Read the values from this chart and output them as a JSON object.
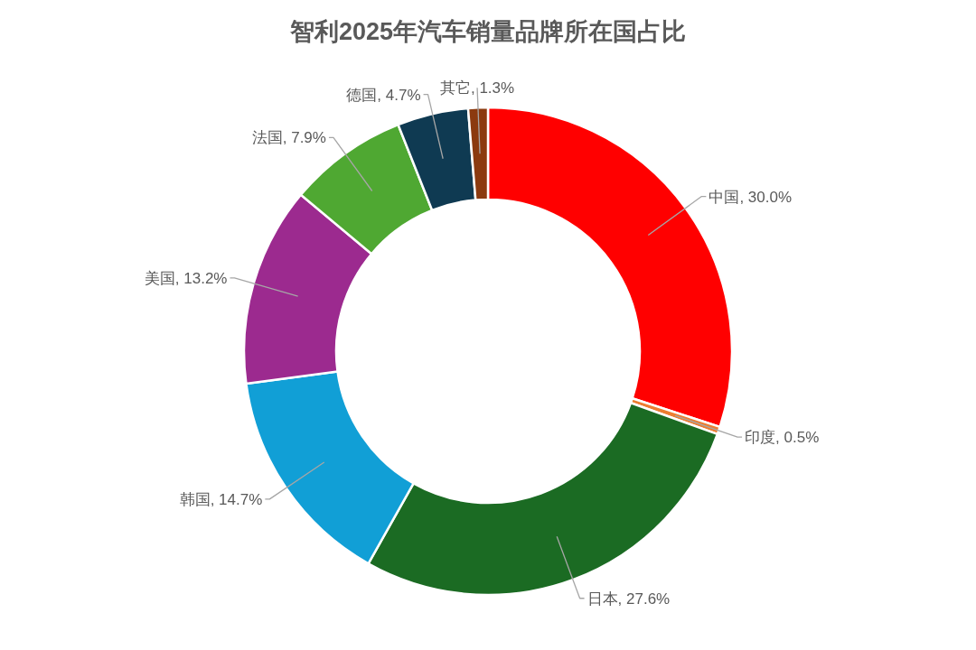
{
  "chart_data": {
    "type": "donut",
    "title": "智利2025年汽车销量品牌所在国占比",
    "categories": [
      "中国",
      "印度",
      "日本",
      "韩国",
      "美国",
      "法国",
      "德国",
      "其它"
    ],
    "values": [
      30.0,
      0.5,
      27.6,
      14.7,
      13.2,
      7.9,
      4.7,
      1.3
    ],
    "colors": [
      "#ff0000",
      "#ed7d31",
      "#1b6b23",
      "#119fd6",
      "#9c2a8f",
      "#4fa832",
      "#0f3a52",
      "#8b3a0f"
    ],
    "value_labels": [
      ", 30.0%",
      ", 0.5%",
      ", 27.6%",
      ", 14.7%",
      ", 13.2%",
      ", 7.9%",
      ", 4.7%",
      ", 1.3%"
    ]
  }
}
